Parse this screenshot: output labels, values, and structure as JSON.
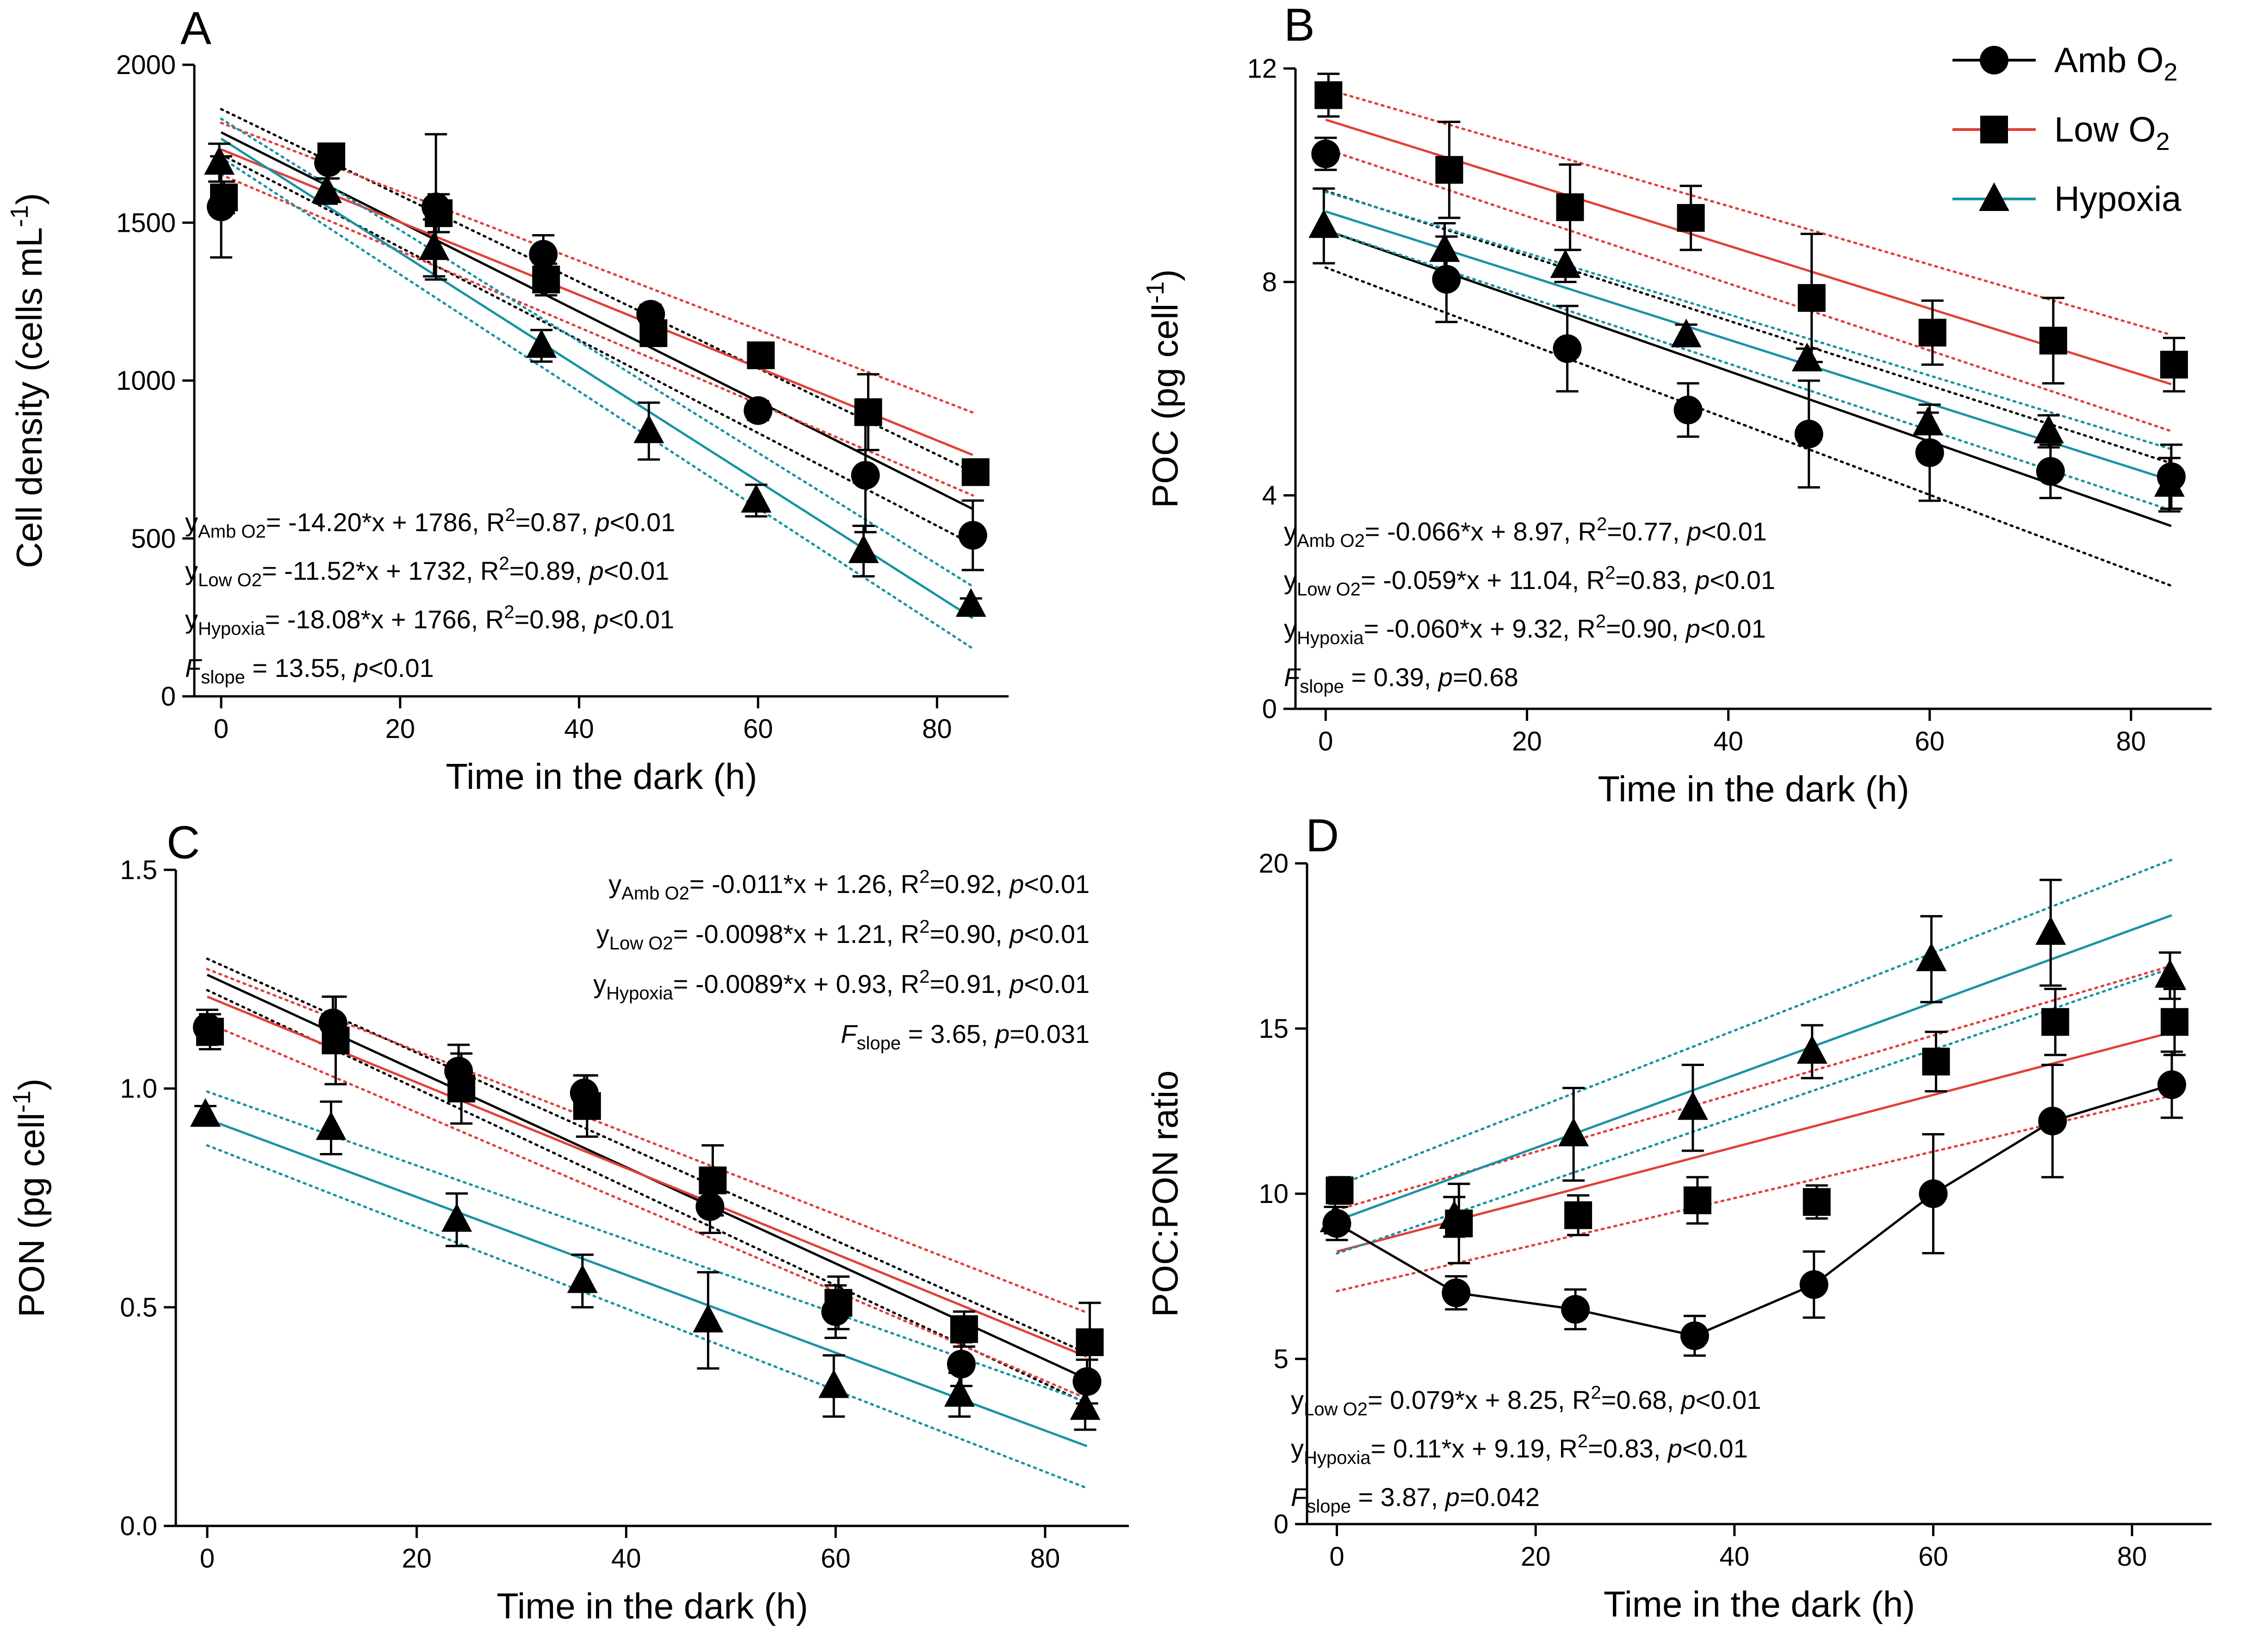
{
  "figure": {
    "legend": {
      "series_labels": [
        "Amb O2",
        "Low O2",
        "Hypoxia"
      ],
      "colors": {
        "amb": "#000000",
        "low": "#e2403a",
        "hyp": "#1a93a3"
      }
    }
  },
  "chart_data": [
    {
      "panel": "A",
      "type": "scatter",
      "xlabel": "Time in the dark (h)",
      "ylabel": "Cell density (cells mL-1)",
      "xlim": [
        -3,
        88
      ],
      "ylim": [
        0,
        2000
      ],
      "xticks": [
        0,
        20,
        40,
        60,
        80
      ],
      "yticks": [
        0,
        500,
        1000,
        1500,
        2000
      ],
      "x": [
        0,
        12,
        24,
        36,
        48,
        60,
        72,
        84
      ],
      "series": [
        {
          "name": "Amb O2",
          "key": "amb",
          "values": [
            1550,
            1690,
            1550,
            1400,
            1210,
            905,
            700,
            510
          ],
          "errors": [
            160,
            50,
            230,
            60,
            30,
            30,
            180,
            110
          ]
        },
        {
          "name": "Low O2",
          "key": "low",
          "values": [
            1580,
            1710,
            1530,
            1320,
            1150,
            1080,
            900,
            710
          ],
          "errors": [
            50,
            40,
            60,
            50,
            30,
            25,
            120,
            30
          ]
        },
        {
          "name": "Hypoxia",
          "key": "hyp",
          "values": [
            1690,
            1600,
            1420,
            1110,
            840,
            620,
            460,
            290
          ],
          "errors": [
            60,
            40,
            90,
            50,
            90,
            50,
            80,
            20
          ]
        }
      ],
      "regressions": [
        {
          "key": "amb",
          "slope": -14.2,
          "intercept": 1786,
          "band": 70
        },
        {
          "key": "low",
          "slope": -11.52,
          "intercept": 1732,
          "band": 80
        },
        {
          "key": "hyp",
          "slope": -18.08,
          "intercept": 1766,
          "band": 60
        }
      ],
      "annotations": [
        {
          "y": "y",
          "sub": "Amb O2",
          "text": "= -14.20*x + 1786, R",
          "sup": "2",
          "rest": "=0.87, ",
          "p": "p",
          "tail": "<0.01"
        },
        {
          "y": "y",
          "sub": "Low O2",
          "text": "= -11.52*x + 1732, R",
          "sup": "2",
          "rest": "=0.89, ",
          "p": "p",
          "tail": "<0.01"
        },
        {
          "y": "y",
          "sub": "Hypoxia",
          "text": "= -18.08*x + 1766, R",
          "sup": "2",
          "rest": "=0.98, ",
          "p": "p",
          "tail": "<0.01"
        },
        {
          "y": "F",
          "sub": "slope",
          "text": " = 13.55, ",
          "p": "p",
          "tail": "<0.01"
        }
      ]
    },
    {
      "panel": "B",
      "type": "scatter",
      "xlabel": "Time in the dark (h)",
      "ylabel": "POC (pg cell-1)",
      "xlim": [
        -3,
        88
      ],
      "ylim": [
        0,
        12
      ],
      "xticks": [
        0,
        20,
        40,
        60,
        80
      ],
      "yticks": [
        0,
        4,
        8,
        12
      ],
      "x": [
        0,
        12,
        24,
        36,
        48,
        60,
        72,
        84
      ],
      "series": [
        {
          "name": "Amb O2",
          "key": "amb",
          "values": [
            10.4,
            8.05,
            6.75,
            5.6,
            5.15,
            4.8,
            4.45,
            4.35
          ],
          "errors": [
            0.3,
            0.8,
            0.8,
            0.5,
            1.0,
            0.9,
            0.5,
            0.6
          ]
        },
        {
          "name": "Low O2",
          "key": "low",
          "values": [
            11.5,
            10.1,
            9.4,
            9.2,
            7.7,
            7.05,
            6.9,
            6.45
          ],
          "errors": [
            0.4,
            0.9,
            0.8,
            0.6,
            1.2,
            0.6,
            0.8,
            0.5
          ]
        },
        {
          "name": "Hypoxia",
          "key": "hyp",
          "values": [
            9.05,
            8.6,
            8.3,
            7.0,
            6.55,
            5.35,
            5.2,
            4.2
          ],
          "errors": [
            0.7,
            0.5,
            0.3,
            0.2,
            0.2,
            0.2,
            0.3,
            0.5
          ]
        }
      ],
      "regressions": [
        {
          "key": "amb",
          "slope": -0.066,
          "intercept": 8.97,
          "band": 0.7
        },
        {
          "key": "low",
          "slope": -0.059,
          "intercept": 11.04,
          "band": 0.55
        },
        {
          "key": "hyp",
          "slope": -0.06,
          "intercept": 9.32,
          "band": 0.35
        }
      ],
      "annotations": [
        {
          "y": "y",
          "sub": "Amb O2",
          "text": "= -0.066*x + 8.97, R",
          "sup": "2",
          "rest": "=0.77, ",
          "p": "p",
          "tail": "<0.01"
        },
        {
          "y": "y",
          "sub": "Low O2",
          "text": "= -0.059*x + 11.04, R",
          "sup": "2",
          "rest": "=0.83, ",
          "p": "p",
          "tail": "<0.01"
        },
        {
          "y": "y",
          "sub": "Hypoxia",
          "text": "= -0.060*x + 9.32, R",
          "sup": "2",
          "rest": "=0.90, ",
          "p": "p",
          "tail": "<0.01"
        },
        {
          "y": "F",
          "sub": "slope",
          "text": " = 0.39, ",
          "p": "p",
          "tail": "=0.68"
        }
      ]
    },
    {
      "panel": "C",
      "type": "scatter",
      "xlabel": "Time in the dark (h)",
      "ylabel": "PON (pg cell-1)",
      "xlim": [
        -3,
        88
      ],
      "ylim": [
        0,
        1.5
      ],
      "xticks": [
        0,
        20,
        40,
        60,
        80
      ],
      "yticks": [
        0.0,
        0.5,
        1.0,
        1.5
      ],
      "yticklabels": [
        "0.0",
        "0.5",
        "1.0",
        "1.5"
      ],
      "x": [
        0,
        12,
        24,
        36,
        48,
        60,
        72,
        84
      ],
      "series": [
        {
          "name": "Amb O2",
          "key": "amb",
          "values": [
            1.14,
            1.15,
            1.04,
            0.99,
            0.73,
            0.49,
            0.37,
            0.33
          ],
          "errors": [
            0.04,
            0.06,
            0.06,
            0.04,
            0.06,
            0.06,
            0.05,
            0.05
          ]
        },
        {
          "name": "Low O2",
          "key": "low",
          "values": [
            1.13,
            1.11,
            1.0,
            0.96,
            0.79,
            0.51,
            0.45,
            0.42
          ],
          "errors": [
            0.04,
            0.1,
            0.08,
            0.07,
            0.08,
            0.06,
            0.04,
            0.09
          ]
        },
        {
          "name": "Hypoxia",
          "key": "hyp",
          "values": [
            0.94,
            0.91,
            0.7,
            0.56,
            0.47,
            0.32,
            0.3,
            0.27
          ],
          "errors": [
            0.02,
            0.06,
            0.06,
            0.06,
            0.11,
            0.07,
            0.05,
            0.05
          ]
        }
      ],
      "regressions": [
        {
          "key": "amb",
          "slope": -0.011,
          "intercept": 1.26,
          "band": 0.035
        },
        {
          "key": "low",
          "slope": -0.0098,
          "intercept": 1.21,
          "band": 0.06
        },
        {
          "key": "hyp",
          "slope": -0.0089,
          "intercept": 0.93,
          "band": 0.06
        }
      ],
      "annotations": [
        {
          "y": "y",
          "sub": "Amb O2",
          "text": "= -0.011*x + 1.26, R",
          "sup": "2",
          "rest": "=0.92, ",
          "p": "p",
          "tail": "<0.01"
        },
        {
          "y": "y",
          "sub": "Low O2",
          "text": "= -0.0098*x + 1.21, R",
          "sup": "2",
          "rest": "=0.90, ",
          "p": "p",
          "tail": "<0.01"
        },
        {
          "y": "y",
          "sub": "Hypoxia",
          "text": "= -0.0089*x + 0.93, R",
          "sup": "2",
          "rest": "=0.91, ",
          "p": "p",
          "tail": "<0.01"
        },
        {
          "y": "F",
          "sub": "slope",
          "text": " = 3.65, ",
          "p": "p",
          "tail": "=0.031"
        }
      ]
    },
    {
      "panel": "D",
      "type": "scatter",
      "xlabel": "Time in the dark (h)",
      "ylabel": "POC:PON ratio",
      "xlim": [
        -3,
        88
      ],
      "ylim": [
        0,
        20
      ],
      "xticks": [
        0,
        20,
        40,
        60,
        80
      ],
      "yticks": [
        0,
        5,
        10,
        15,
        20
      ],
      "x": [
        0,
        12,
        24,
        36,
        48,
        60,
        72,
        84
      ],
      "series": [
        {
          "name": "Amb O2",
          "key": "amb",
          "values": [
            9.1,
            7.0,
            6.5,
            5.7,
            7.25,
            10.0,
            12.2,
            13.3
          ],
          "errors": [
            0.5,
            0.5,
            0.6,
            0.6,
            1.0,
            1.8,
            1.7,
            1.0
          ],
          "connect": true
        },
        {
          "name": "Low O2",
          "key": "low",
          "values": [
            10.1,
            9.1,
            9.35,
            9.8,
            9.75,
            14.0,
            15.2,
            15.2
          ],
          "errors": [
            0.4,
            1.2,
            0.6,
            0.7,
            0.5,
            0.9,
            1.0,
            1.0
          ]
        },
        {
          "name": "Hypoxia",
          "key": "hyp",
          "values": [
            9.2,
            9.3,
            11.8,
            12.6,
            14.3,
            17.1,
            17.9,
            16.6
          ],
          "errors": [
            0.4,
            0.6,
            1.4,
            1.3,
            0.8,
            1.3,
            1.6,
            0.7
          ]
        }
      ],
      "regressions": [
        {
          "key": "low",
          "slope": 0.079,
          "intercept": 8.25,
          "band": 1.2
        },
        {
          "key": "hyp",
          "slope": 0.11,
          "intercept": 9.19,
          "band": 1.0
        }
      ],
      "annotations": [
        {
          "y": "y",
          "sub": "Low O2",
          "text": "= 0.079*x + 8.25, R",
          "sup": "2",
          "rest": "=0.68, ",
          "p": "p",
          "tail": "<0.01"
        },
        {
          "y": "y",
          "sub": "Hypoxia",
          "text": "= 0.11*x + 9.19, R",
          "sup": "2",
          "rest": "=0.83, ",
          "p": "p",
          "tail": "<0.01"
        },
        {
          "y": "F",
          "sub": "slope",
          "text": " = 3.87, ",
          "p": "p",
          "tail": "=0.042"
        }
      ]
    }
  ]
}
